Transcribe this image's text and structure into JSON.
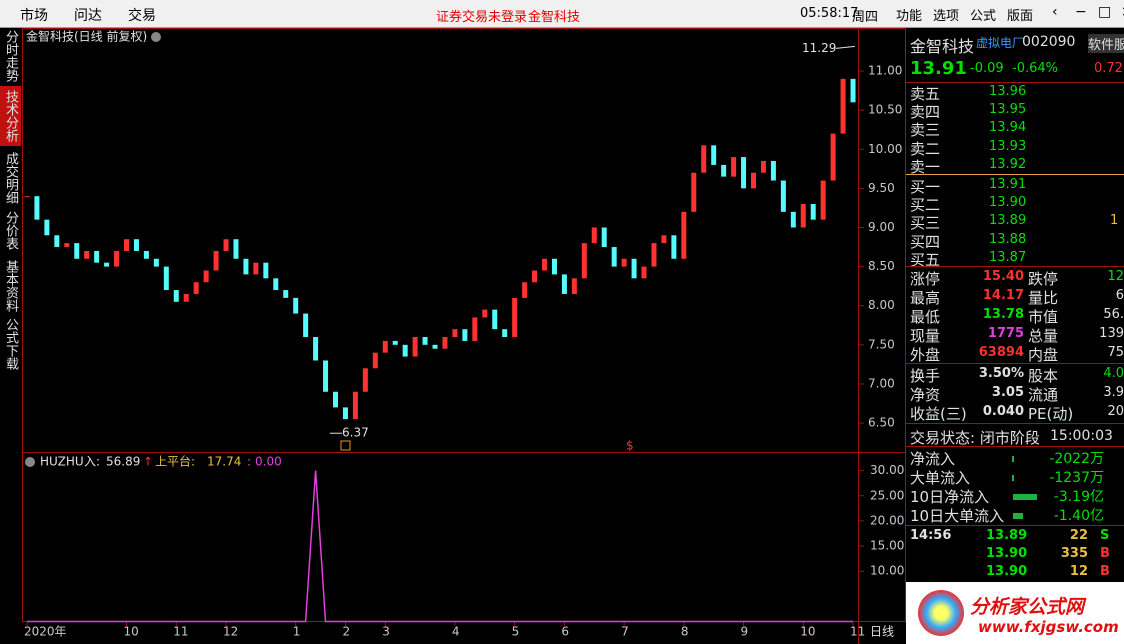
{
  "top_bar": {
    "menus": [
      "市场",
      "问达",
      "交易"
    ],
    "notice": "证券交易未登录",
    "stock": "金智科技",
    "clock": "05:58:17",
    "weekday": "周四",
    "tools": [
      "功能",
      "选项",
      "公式",
      "版面"
    ]
  },
  "side_tabs": [
    "分时走势",
    "技术分析",
    "成交明细",
    "分价表",
    "基本资料",
    "公式下载"
  ],
  "active_tab": 1,
  "price_chart": {
    "title": "金智科技(日线 前复权)",
    "categories": [
      "2020年",
      null,
      null,
      null,
      null,
      null,
      null,
      null,
      null,
      null,
      "10",
      null,
      null,
      null,
      null,
      "11",
      null,
      null,
      null,
      null,
      "12",
      null,
      null,
      null,
      null,
      null,
      null,
      "1",
      null,
      null,
      null,
      null,
      "2",
      null,
      null,
      null,
      "3",
      null,
      null,
      null,
      null,
      null,
      null,
      "4",
      null,
      null,
      null,
      null,
      null,
      "5",
      null,
      null,
      null,
      null,
      "6",
      null,
      null,
      null,
      null,
      null,
      "7",
      null,
      null,
      null,
      null,
      null,
      "8",
      null,
      null,
      null,
      null,
      null,
      "9",
      null,
      null,
      null,
      null,
      null,
      "10",
      null,
      null,
      null,
      null,
      "11"
    ],
    "closes": [
      9.4,
      9.1,
      8.9,
      8.75,
      8.8,
      8.6,
      8.7,
      8.55,
      8.5,
      8.7,
      8.85,
      8.7,
      8.6,
      8.5,
      8.2,
      8.05,
      8.15,
      8.3,
      8.45,
      8.7,
      8.85,
      8.6,
      8.4,
      8.55,
      8.35,
      8.2,
      8.1,
      7.9,
      7.6,
      7.3,
      6.9,
      6.7,
      6.55,
      6.9,
      7.2,
      7.4,
      7.55,
      7.5,
      7.35,
      7.6,
      7.5,
      7.45,
      7.6,
      7.7,
      7.55,
      7.85,
      7.95,
      7.7,
      7.6,
      8.1,
      8.3,
      8.45,
      8.6,
      8.4,
      8.15,
      8.35,
      8.8,
      9.0,
      8.75,
      8.5,
      8.6,
      8.35,
      8.5,
      8.8,
      8.9,
      8.6,
      9.2,
      9.7,
      10.05,
      9.8,
      9.65,
      9.9,
      9.5,
      9.7,
      9.85,
      9.6,
      9.2,
      9.0,
      9.3,
      9.1,
      9.6,
      10.2,
      10.9,
      10.6
    ],
    "ylim": [
      6.13,
      11.55
    ],
    "yticks": [
      {
        "value": 6.5,
        "label": "6.50"
      },
      {
        "value": 7,
        "label": "7.00"
      },
      {
        "value": 7.5,
        "label": "7.50"
      },
      {
        "value": 8,
        "label": "8.00"
      },
      {
        "value": 8.5,
        "label": "8.50"
      },
      {
        "value": 9,
        "label": "9.00"
      },
      {
        "value": 9.5,
        "label": "9.50"
      },
      {
        "value": 10,
        "label": "10.00"
      },
      {
        "value": 10.5,
        "label": "10.50"
      },
      {
        "value": 11,
        "label": "11.00"
      }
    ],
    "high_label": 11.29,
    "low_label": 6.37,
    "up_color": "#ff3232",
    "down_color": "#54fcfc"
  },
  "indicator": {
    "name": "HUZHU",
    "inflow_label": "入:",
    "inflow": 56.89,
    "arrow": "↑",
    "platform_label": "上平台:",
    "platform": 17.74,
    "third_label": ":",
    "third": {
      "value": 0,
      "label": "0.00"
    },
    "color": "#e040e0",
    "values": [
      0,
      0,
      0,
      0,
      0,
      0,
      0,
      0,
      0,
      0,
      0,
      0,
      0,
      0,
      0,
      0,
      0,
      0,
      0,
      0,
      0,
      0,
      0,
      0,
      0,
      0,
      0,
      0,
      0,
      30,
      0,
      0,
      0,
      0,
      0,
      0,
      0,
      0,
      0,
      0,
      0,
      0,
      0,
      0,
      0,
      0,
      0,
      0,
      0,
      0,
      0,
      0,
      0,
      0,
      0,
      0,
      0,
      0,
      0,
      0,
      0,
      0,
      0,
      0,
      0,
      0,
      0,
      0,
      0,
      0,
      0,
      0,
      0,
      0,
      0,
      0,
      0,
      0,
      0,
      0,
      0,
      0,
      0,
      0
    ],
    "ylim": [
      0,
      33.4
    ],
    "yticks": [
      {
        "value": 10,
        "label": "10.00"
      },
      {
        "value": 15,
        "label": "15.00"
      },
      {
        "value": 20,
        "label": "20.00"
      },
      {
        "value": 25,
        "label": "25.00"
      },
      {
        "value": 30,
        "label": "30.00"
      }
    ]
  },
  "period": "日线",
  "quote": {
    "name": "金智科技",
    "tag": "虚拟电厂",
    "code": "002090",
    "side": "软件服",
    "price": "13.91",
    "change": "-0.09",
    "pct": "-0.64%",
    "side_val": "0.72"
  },
  "order_book": {
    "asks": [
      {
        "label": "卖五",
        "price": "13.96"
      },
      {
        "label": "卖四",
        "price": "13.95"
      },
      {
        "label": "卖三",
        "price": "13.94"
      },
      {
        "label": "卖二",
        "price": "13.93"
      },
      {
        "label": "卖一",
        "price": "13.92"
      }
    ],
    "bids": [
      {
        "label": "买一",
        "price": "13.91"
      },
      {
        "label": "买二",
        "price": "13.90"
      },
      {
        "label": "买三",
        "price": "13.89",
        "vol": "1"
      },
      {
        "label": "买四",
        "price": "13.88"
      },
      {
        "label": "买五",
        "price": "13.87"
      }
    ]
  },
  "stats": [
    [
      "涨停",
      "15.40",
      "跌停",
      "12"
    ],
    [
      "最高",
      "14.17",
      "量比",
      "6"
    ],
    [
      "最低",
      "13.78",
      "市值",
      "56."
    ],
    [
      "现量",
      "1775",
      "总量",
      "139"
    ],
    [
      "外盘",
      "63894",
      "内盘",
      "75"
    ]
  ],
  "stats2": [
    [
      "换手",
      "3.50%",
      "股本",
      "4.0"
    ],
    [
      "净资",
      "3.05",
      "流通",
      "3.9"
    ],
    [
      "收益(三)",
      "0.040",
      "PE(动)",
      "20"
    ]
  ],
  "status": {
    "label": "交易状态: 闭市阶段",
    "time": "15:00:03"
  },
  "flows": [
    {
      "label": "净流入",
      "value": "-2022万"
    },
    {
      "label": "大单流入",
      "value": "-1237万"
    },
    {
      "label": "10日净流入",
      "value": "-3.19亿"
    },
    {
      "label": "10日大单流入",
      "value": "-1.40亿"
    }
  ],
  "ticks": [
    {
      "time": "14:56",
      "price": "13.89",
      "vol": "22",
      "side": "S"
    },
    {
      "price": "13.90",
      "vol": "335",
      "side": "B"
    },
    {
      "price": "13.90",
      "vol": "12",
      "side": "B"
    }
  ],
  "logo": {
    "text": "分析家公式网",
    "url": "www.fxjgsw.com"
  }
}
